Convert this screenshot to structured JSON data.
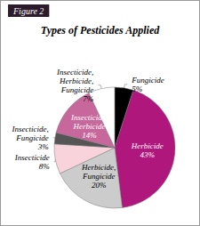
{
  "chart_data": {
    "type": "pie",
    "title": "Types of Pesticides Applied",
    "annotations": [
      "Figure 2"
    ],
    "categories": [
      "Fungicide",
      "Herbicide",
      "Herbicide, Fungicide",
      "Insecticide",
      "Insecticide, Fungicide",
      "Insecticide, Herbicide",
      "Insecticide, Herbicide, Fungicide"
    ],
    "values": [
      5,
      43,
      20,
      8,
      3,
      14,
      7
    ],
    "value_labels": [
      "5%",
      "43%",
      "20%",
      "8%",
      "3%",
      "14%",
      "7%"
    ],
    "colors": [
      "#000000",
      "#b0177c",
      "#cccccc",
      "#f9d3dc",
      "#555555",
      "#c7679b",
      "#ffffff"
    ],
    "data_labels": true
  }
}
